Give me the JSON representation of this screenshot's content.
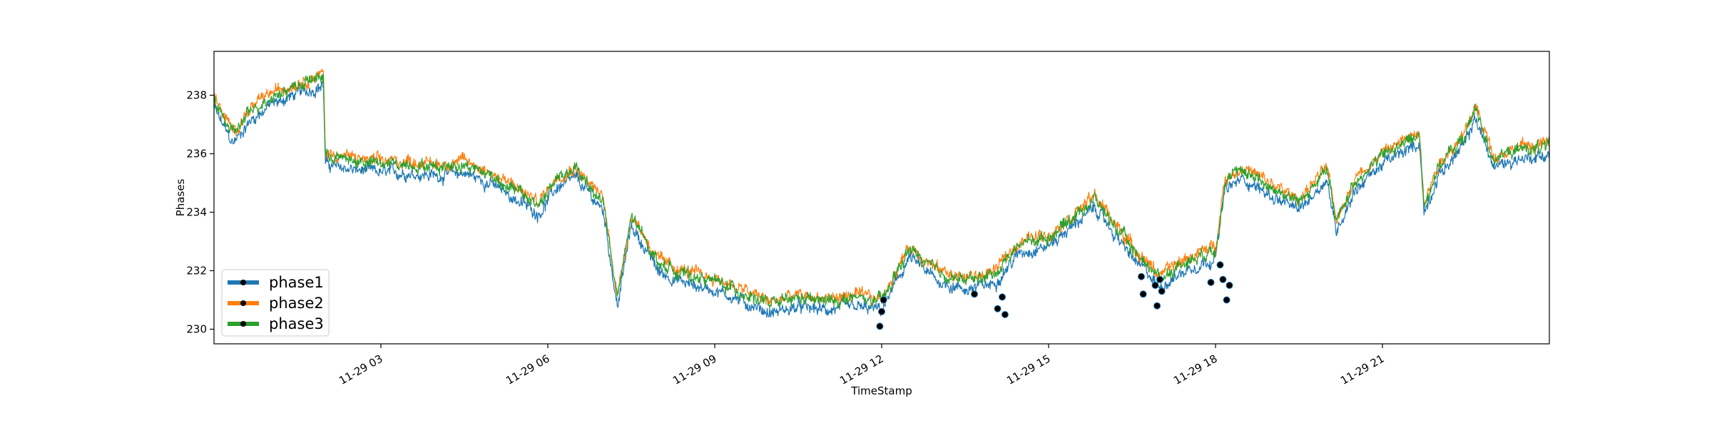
{
  "chart_data": {
    "type": "line",
    "title": "",
    "xlabel": "TimeStamp",
    "ylabel": "Phases",
    "x_range": [
      "2019-11-29 00:00",
      "2019-11-30 00:00"
    ],
    "ylim": [
      229.5,
      239.5
    ],
    "y_ticks": [
      230,
      232,
      234,
      236,
      238
    ],
    "x_ticks": [
      {
        "t": "2019-11-29 03:00",
        "label": "11-29 03"
      },
      {
        "t": "2019-11-29 06:00",
        "label": "11-29 06"
      },
      {
        "t": "2019-11-29 09:00",
        "label": "11-29 09"
      },
      {
        "t": "2019-11-29 12:00",
        "label": "11-29 12"
      },
      {
        "t": "2019-11-29 15:00",
        "label": "11-29 15"
      },
      {
        "t": "2019-11-29 18:00",
        "label": "11-29 18"
      },
      {
        "t": "2019-11-29 21:00",
        "label": "11-29 21"
      }
    ],
    "grid": false,
    "legend_position": "bottom-left",
    "series": [
      {
        "name": "phase1",
        "color": "#1f77b4"
      },
      {
        "name": "phase2",
        "color": "#ff7f0e"
      },
      {
        "name": "phase3",
        "color": "#2ca02c"
      }
    ],
    "base_curve": {
      "x": [
        "2019-11-29 00:00",
        "2019-11-29 00:20",
        "2019-11-29 00:40",
        "2019-11-29 01:00",
        "2019-11-29 01:30",
        "2019-11-29 01:58",
        "2019-11-29 02:00",
        "2019-11-29 02:30",
        "2019-11-29 03:00",
        "2019-11-29 03:30",
        "2019-11-29 04:00",
        "2019-11-29 04:30",
        "2019-11-29 05:00",
        "2019-11-29 05:30",
        "2019-11-29 05:50",
        "2019-11-29 06:10",
        "2019-11-29 06:30",
        "2019-11-29 07:00",
        "2019-11-29 07:15",
        "2019-11-29 07:30",
        "2019-11-29 08:00",
        "2019-11-29 08:30",
        "2019-11-29 09:00",
        "2019-11-29 09:30",
        "2019-11-29 10:00",
        "2019-11-29 10:30",
        "2019-11-29 11:00",
        "2019-11-29 11:30",
        "2019-11-29 12:00",
        "2019-11-29 12:30",
        "2019-11-29 13:00",
        "2019-11-29 13:30",
        "2019-11-29 14:00",
        "2019-11-29 14:30",
        "2019-11-29 15:00",
        "2019-11-29 15:30",
        "2019-11-29 15:50",
        "2019-11-29 16:30",
        "2019-11-29 17:00",
        "2019-11-29 17:30",
        "2019-11-29 18:00",
        "2019-11-29 18:10",
        "2019-11-29 18:30",
        "2019-11-29 19:00",
        "2019-11-29 19:30",
        "2019-11-29 20:00",
        "2019-11-29 20:10",
        "2019-11-29 20:30",
        "2019-11-29 21:00",
        "2019-11-29 21:40",
        "2019-11-29 21:45",
        "2019-11-29 22:00",
        "2019-11-29 22:30",
        "2019-11-29 22:40",
        "2019-11-29 23:00",
        "2019-11-29 23:30",
        "2019-11-29 24:00"
      ],
      "y": [
        237.8,
        236.6,
        237.4,
        237.9,
        238.3,
        238.6,
        235.9,
        235.7,
        235.6,
        235.6,
        235.5,
        235.6,
        235.2,
        234.6,
        234.2,
        235.1,
        235.4,
        234.3,
        231.0,
        233.8,
        232.2,
        231.8,
        231.6,
        231.2,
        230.8,
        231.0,
        230.9,
        231.0,
        230.9,
        232.7,
        231.9,
        231.6,
        231.8,
        232.9,
        233.1,
        233.9,
        234.4,
        232.7,
        231.7,
        232.3,
        232.7,
        235.0,
        235.4,
        234.8,
        234.3,
        235.4,
        233.6,
        235.0,
        235.9,
        236.6,
        234.2,
        235.5,
        236.6,
        237.5,
        235.8,
        236.1,
        236.2
      ]
    },
    "phase_offsets": [
      -0.25,
      0.15,
      0.05
    ],
    "markers": {
      "color": "#000000",
      "points": [
        {
          "x": "2019-11-29 11:58",
          "y": 230.1
        },
        {
          "x": "2019-11-29 12:00",
          "y": 230.6
        },
        {
          "x": "2019-11-29 12:02",
          "y": 231.0
        },
        {
          "x": "2019-11-29 13:40",
          "y": 231.2
        },
        {
          "x": "2019-11-29 14:05",
          "y": 230.7
        },
        {
          "x": "2019-11-29 14:10",
          "y": 231.1
        },
        {
          "x": "2019-11-29 14:13",
          "y": 230.5
        },
        {
          "x": "2019-11-29 16:40",
          "y": 231.8
        },
        {
          "x": "2019-11-29 16:42",
          "y": 231.2
        },
        {
          "x": "2019-11-29 16:55",
          "y": 231.5
        },
        {
          "x": "2019-11-29 16:57",
          "y": 230.8
        },
        {
          "x": "2019-11-29 17:00",
          "y": 231.7
        },
        {
          "x": "2019-11-29 17:02",
          "y": 231.3
        },
        {
          "x": "2019-11-29 17:55",
          "y": 231.6
        },
        {
          "x": "2019-11-29 18:05",
          "y": 232.2
        },
        {
          "x": "2019-11-29 18:08",
          "y": 231.7
        },
        {
          "x": "2019-11-29 18:12",
          "y": 231.0
        },
        {
          "x": "2019-11-29 18:15",
          "y": 231.5
        }
      ]
    }
  }
}
